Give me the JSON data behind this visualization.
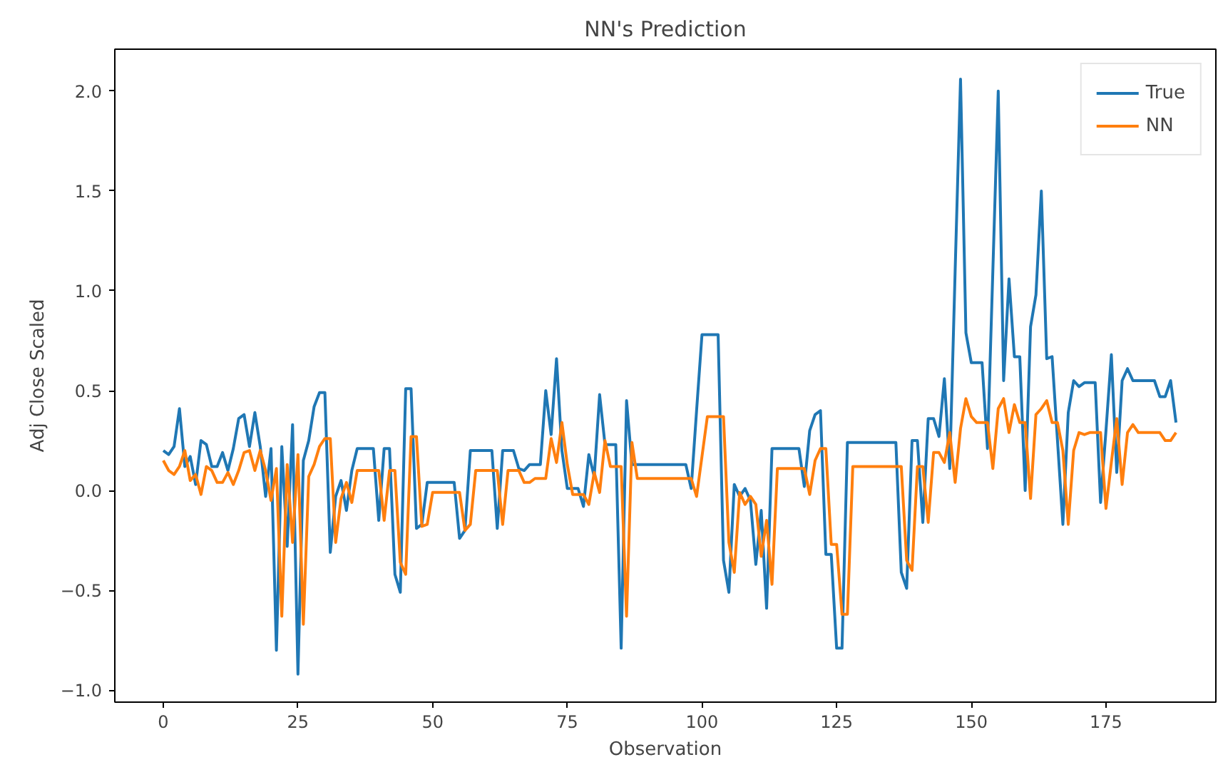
{
  "chart_data": {
    "type": "line",
    "title": "NN's Prediction",
    "xlabel": "Observation",
    "ylabel": "Adj Close Scaled",
    "x": [
      0,
      1,
      2,
      3,
      4,
      5,
      6,
      7,
      8,
      9,
      10,
      11,
      12,
      13,
      14,
      15,
      16,
      17,
      18,
      19,
      20,
      21,
      22,
      23,
      24,
      25,
      26,
      27,
      28,
      29,
      30,
      31,
      32,
      33,
      34,
      35,
      36,
      37,
      38,
      39,
      40,
      41,
      42,
      43,
      44,
      45,
      46,
      47,
      48,
      49,
      50,
      51,
      52,
      53,
      54,
      55,
      56,
      57,
      58,
      59,
      60,
      61,
      62,
      63,
      64,
      65,
      66,
      67,
      68,
      69,
      70,
      71,
      72,
      73,
      74,
      75,
      76,
      77,
      78,
      79,
      80,
      81,
      82,
      83,
      84,
      85,
      86,
      87,
      88,
      89,
      90,
      91,
      92,
      93,
      94,
      95,
      96,
      97,
      98,
      99,
      100,
      101,
      102,
      103,
      104,
      105,
      106,
      107,
      108,
      109,
      110,
      111,
      112,
      113,
      114,
      115,
      116,
      117,
      118,
      119,
      120,
      121,
      122,
      123,
      124,
      125,
      126,
      127,
      128,
      129,
      130,
      131,
      132,
      133,
      134,
      135,
      136,
      137,
      138,
      139,
      140,
      141,
      142,
      143,
      144,
      145,
      146,
      147,
      148,
      149,
      150,
      151,
      152,
      153,
      154,
      155,
      156,
      157,
      158,
      159,
      160,
      161,
      162,
      163,
      164,
      165,
      166,
      167,
      168,
      169,
      170,
      171,
      172,
      173,
      174,
      175,
      176,
      177,
      178,
      179,
      180,
      181,
      182,
      183,
      184,
      185,
      186,
      187,
      188
    ],
    "series": [
      {
        "name": "True",
        "color": "#1f77b4",
        "values": [
          0.2,
          0.18,
          0.22,
          0.41,
          0.12,
          0.17,
          0.03,
          0.25,
          0.23,
          0.12,
          0.12,
          0.19,
          0.1,
          0.21,
          0.36,
          0.38,
          0.22,
          0.39,
          0.22,
          -0.03,
          0.21,
          -0.8,
          0.22,
          -0.28,
          0.33,
          -0.92,
          0.15,
          0.25,
          0.42,
          0.49,
          0.49,
          -0.31,
          -0.03,
          0.05,
          -0.1,
          0.1,
          0.21,
          0.21,
          0.21,
          0.21,
          -0.15,
          0.21,
          0.21,
          -0.42,
          -0.51,
          0.51,
          0.51,
          -0.19,
          -0.17,
          0.04,
          0.04,
          0.04,
          0.04,
          0.04,
          0.04,
          -0.24,
          -0.2,
          0.2,
          0.2,
          0.2,
          0.2,
          0.2,
          -0.19,
          0.2,
          0.2,
          0.2,
          0.11,
          0.1,
          0.13,
          0.13,
          0.13,
          0.5,
          0.28,
          0.66,
          0.2,
          0.01,
          0.01,
          0.01,
          -0.08,
          0.18,
          0.07,
          0.48,
          0.23,
          0.23,
          0.23,
          -0.79,
          0.45,
          0.13,
          0.13,
          0.13,
          0.13,
          0.13,
          0.13,
          0.13,
          0.13,
          0.13,
          0.13,
          0.13,
          0.01,
          0.4,
          0.78,
          0.78,
          0.78,
          0.78,
          -0.35,
          -0.51,
          0.03,
          -0.03,
          0.01,
          -0.05,
          -0.37,
          -0.1,
          -0.59,
          0.21,
          0.21,
          0.21,
          0.21,
          0.21,
          0.21,
          0.02,
          0.3,
          0.38,
          0.4,
          -0.32,
          -0.32,
          -0.79,
          -0.79,
          0.24,
          0.24,
          0.24,
          0.24,
          0.24,
          0.24,
          0.24,
          0.24,
          0.24,
          0.24,
          -0.41,
          -0.49,
          0.25,
          0.25,
          -0.16,
          0.36,
          0.36,
          0.27,
          0.56,
          0.11,
          1.1,
          2.06,
          0.79,
          0.64,
          0.64,
          0.64,
          0.21,
          1.1,
          2.0,
          0.55,
          1.06,
          0.67,
          0.67,
          0.0,
          0.82,
          0.98,
          1.5,
          0.66,
          0.67,
          0.25,
          -0.17,
          0.39,
          0.55,
          0.52,
          0.54,
          0.54,
          0.54,
          -0.06,
          0.3,
          0.68,
          0.09,
          0.55,
          0.61,
          0.55,
          0.55,
          0.55,
          0.55,
          0.55,
          0.47,
          0.47,
          0.55,
          0.34
        ]
      },
      {
        "name": "NN",
        "color": "#ff7f0e",
        "values": [
          0.15,
          0.1,
          0.08,
          0.12,
          0.2,
          0.05,
          0.08,
          -0.02,
          0.12,
          0.1,
          0.04,
          0.04,
          0.09,
          0.03,
          0.1,
          0.19,
          0.2,
          0.1,
          0.2,
          0.1,
          -0.05,
          0.11,
          -0.63,
          0.13,
          -0.26,
          0.18,
          -0.67,
          0.07,
          0.13,
          0.22,
          0.26,
          0.26,
          -0.26,
          -0.04,
          0.04,
          -0.06,
          0.1,
          0.1,
          0.1,
          0.1,
          0.1,
          -0.15,
          0.1,
          0.1,
          -0.36,
          -0.42,
          0.27,
          0.27,
          -0.18,
          -0.17,
          -0.01,
          -0.01,
          -0.01,
          -0.01,
          -0.01,
          -0.01,
          -0.2,
          -0.17,
          0.1,
          0.1,
          0.1,
          0.1,
          0.1,
          -0.17,
          0.1,
          0.1,
          0.1,
          0.04,
          0.04,
          0.06,
          0.06,
          0.06,
          0.26,
          0.14,
          0.34,
          0.13,
          -0.02,
          -0.02,
          -0.02,
          -0.07,
          0.09,
          -0.01,
          0.25,
          0.12,
          0.12,
          0.12,
          -0.63,
          0.24,
          0.06,
          0.06,
          0.06,
          0.06,
          0.06,
          0.06,
          0.06,
          0.06,
          0.06,
          0.06,
          0.06,
          -0.03,
          0.17,
          0.37,
          0.37,
          0.37,
          0.37,
          -0.26,
          -0.41,
          -0.01,
          -0.07,
          -0.03,
          -0.07,
          -0.33,
          -0.15,
          -0.47,
          0.11,
          0.11,
          0.11,
          0.11,
          0.11,
          0.11,
          -0.02,
          0.15,
          0.21,
          0.21,
          -0.27,
          -0.27,
          -0.62,
          -0.62,
          0.12,
          0.12,
          0.12,
          0.12,
          0.12,
          0.12,
          0.12,
          0.12,
          0.12,
          0.12,
          -0.35,
          -0.4,
          0.12,
          0.12,
          -0.16,
          0.19,
          0.19,
          0.14,
          0.29,
          0.04,
          0.31,
          0.46,
          0.37,
          0.34,
          0.34,
          0.34,
          0.11,
          0.41,
          0.46,
          0.29,
          0.43,
          0.34,
          0.34,
          -0.04,
          0.38,
          0.41,
          0.45,
          0.34,
          0.34,
          0.2,
          -0.17,
          0.2,
          0.29,
          0.28,
          0.29,
          0.29,
          0.29,
          -0.09,
          0.14,
          0.36,
          0.03,
          0.29,
          0.33,
          0.29,
          0.29,
          0.29,
          0.29,
          0.29,
          0.25,
          0.25,
          0.29
        ]
      }
    ],
    "xlim": [
      -9,
      195.4
    ],
    "ylim": [
      -1.06,
      2.21
    ],
    "xticks": [
      0,
      25,
      50,
      75,
      100,
      125,
      150,
      175
    ],
    "yticks": [
      {
        "value": -1.0,
        "label": "−1.0"
      },
      {
        "value": -0.5,
        "label": "−0.5"
      },
      {
        "value": 0,
        "label": "0.0"
      },
      {
        "value": 0.5,
        "label": "0.5"
      },
      {
        "value": 1.0,
        "label": "1.0"
      },
      {
        "value": 1.5,
        "label": "1.5"
      },
      {
        "value": 2.0,
        "label": "2.0"
      }
    ],
    "grid": false,
    "legend": "top right",
    "marker": "none",
    "line_style": "solid"
  }
}
